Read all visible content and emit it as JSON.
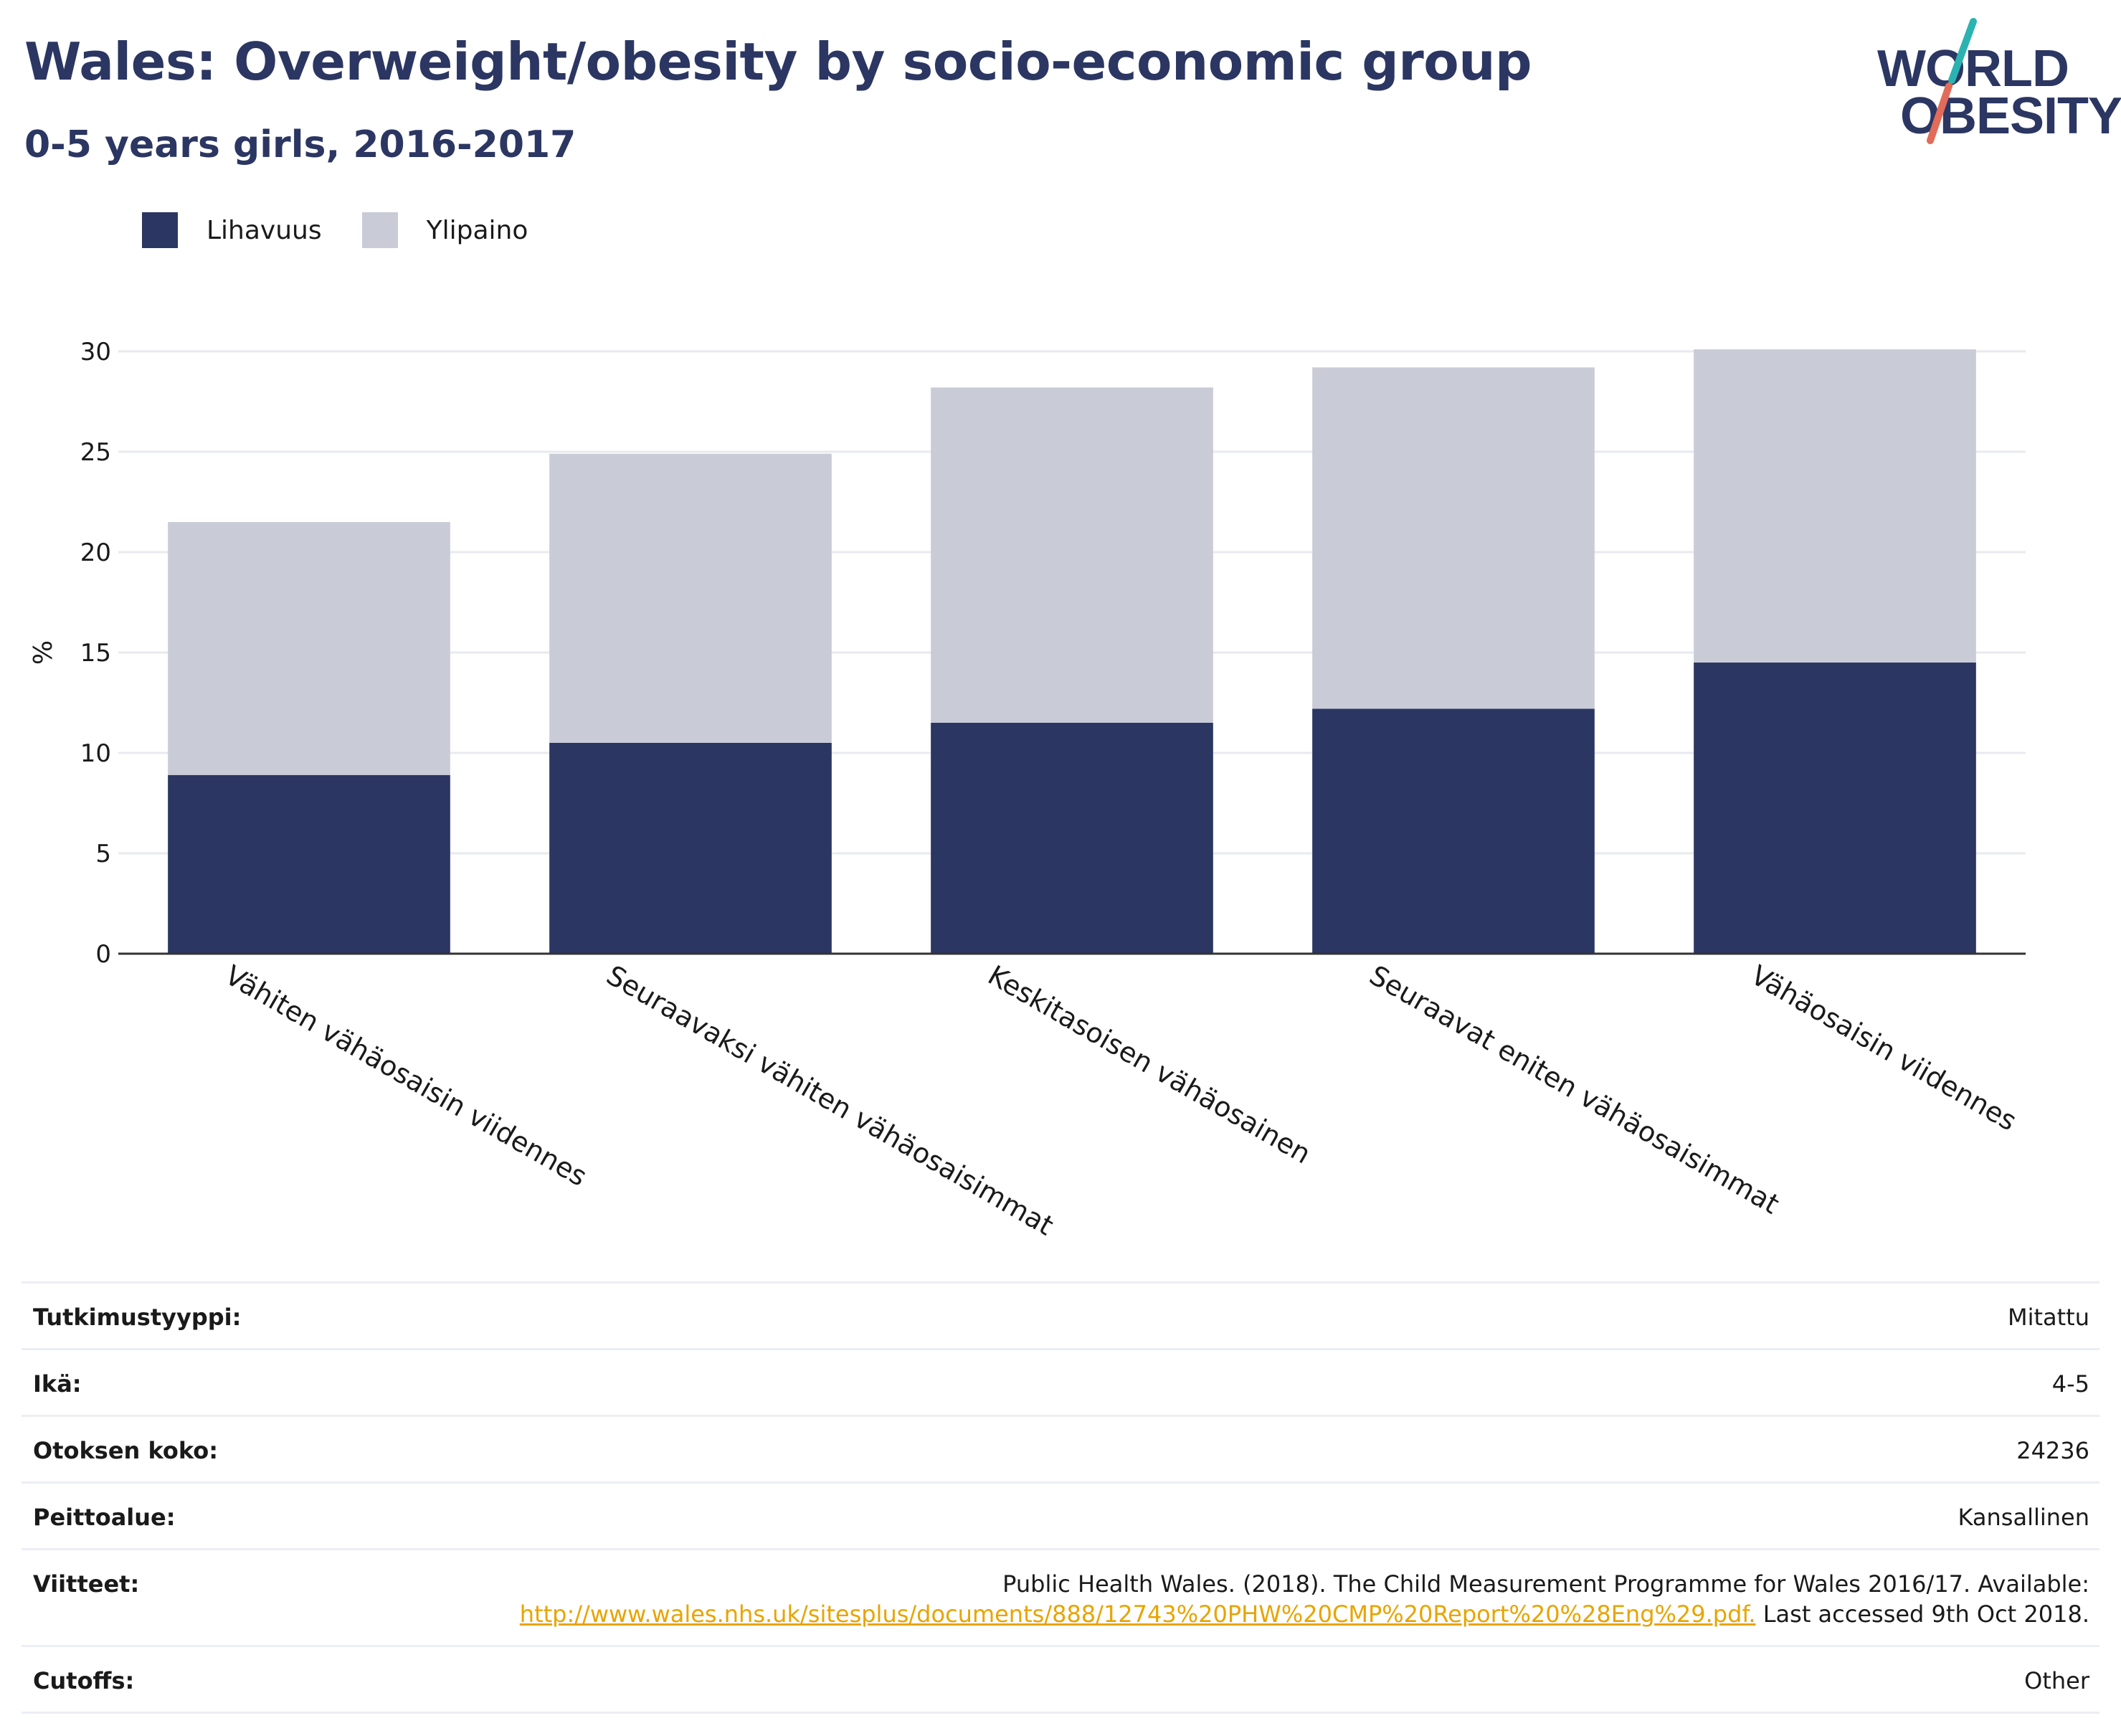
{
  "header": {
    "title": "Wales: Overweight/obesity by socio-economic group",
    "subtitle": "0-5 years girls, 2016-2017"
  },
  "logo": {
    "line1": "WORLD",
    "line2": "OBESITY"
  },
  "colors": {
    "title": "#2b3662",
    "obesity": "#2b3662",
    "overweight": "#c9cbd7",
    "link": "#e8a400",
    "logo_teal": "#2bb3b1",
    "logo_coral": "#e26b5a"
  },
  "chart_data": {
    "type": "bar",
    "stacked": true,
    "categories": [
      "Vähiten vähäosaisin viidennes",
      "Seuraavaksi vähiten vähäosaisimmat",
      "Keskitasoisen vähäosainen",
      "Seuraavat eniten vähäosaisimmat",
      "Vähäosaisin viidennes"
    ],
    "series": [
      {
        "name": "Lihavuus",
        "values": [
          8.9,
          10.5,
          11.5,
          12.2,
          14.5
        ]
      },
      {
        "name": "Ylipaino",
        "values": [
          12.6,
          14.4,
          16.7,
          17.0,
          15.6
        ]
      }
    ],
    "ylabel": "%",
    "ylim": [
      0,
      30
    ],
    "yticks": [
      0,
      5,
      10,
      15,
      20,
      25,
      30
    ],
    "grid": true,
    "legend": "top-left"
  },
  "details": [
    {
      "label": "Tutkimustyyppi:",
      "value": "Mitattu"
    },
    {
      "label": "Ikä:",
      "value": "4-5"
    },
    {
      "label": "Otoksen koko:",
      "value": "24236"
    },
    {
      "label": "Peittoalue:",
      "value": "Kansallinen"
    }
  ],
  "reference": {
    "label": "Viitteet:",
    "text_before": "Public Health Wales. (2018). The Child Measurement Programme for Wales 2016/17. Available: ",
    "link": "http://www.wales.nhs.uk/sitesplus/documents/888/12743%20PHW%20CMP%20Report%20%28Eng%29.pdf.",
    "text_after": " Last accessed 9th Oct 2018."
  },
  "cutoffs": {
    "label": "Cutoffs:",
    "value": "Other"
  }
}
